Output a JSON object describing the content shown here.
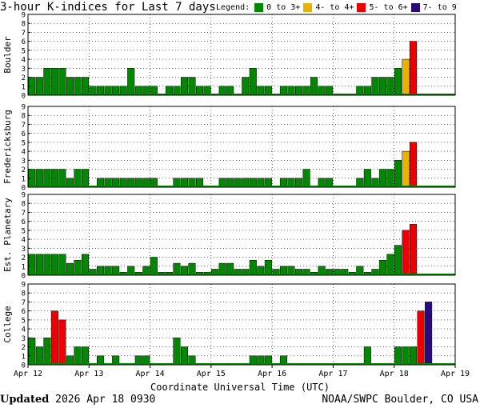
{
  "title": "3-hour K-indices for Last 7 days",
  "legend": {
    "label": "Legend:",
    "items": [
      {
        "label": "0 to 3+",
        "color": "#008800"
      },
      {
        "label": "4- to 4+",
        "color": "#e6b400"
      },
      {
        "label": "5- to 6+",
        "color": "#ee0000"
      },
      {
        "label": "7- to 9",
        "color": "#2a0a7a"
      }
    ]
  },
  "footer": {
    "updated_label": "Updated",
    "updated_value": "2026 Apr 18 0930",
    "credit": "NOAA/SWPC Boulder, CO USA"
  },
  "chart_data": {
    "type": "bar",
    "xlabel": "Coordinate Universal Time (UTC)",
    "x_ticks": [
      "Apr 12",
      "Apr 13",
      "Apr 14",
      "Apr 15",
      "Apr 16",
      "Apr 17",
      "Apr 18",
      "Apr 19"
    ],
    "ylim": [
      0,
      9
    ],
    "y_ticks": [
      "0",
      "1",
      "2",
      "3",
      "4",
      "5",
      "6",
      "7",
      "8",
      "9"
    ],
    "grid": true,
    "bins_per_day": 8,
    "panels": [
      {
        "name": "Boulder",
        "values": [
          2,
          2,
          3,
          3,
          3,
          2,
          2,
          2,
          1,
          1,
          1,
          1,
          1,
          3,
          1,
          1,
          1,
          0,
          1,
          1,
          2,
          2,
          1,
          1,
          0,
          1,
          1,
          0,
          2,
          3,
          1,
          1,
          0,
          1,
          1,
          1,
          1,
          2,
          1,
          1,
          0,
          0,
          0,
          1,
          1,
          2,
          2,
          2,
          3,
          4,
          6,
          0,
          0,
          0,
          0,
          0
        ]
      },
      {
        "name": "Fredericksburg",
        "values": [
          2,
          2,
          2,
          2,
          2,
          1,
          2,
          2,
          0,
          1,
          1,
          1,
          1,
          1,
          1,
          1,
          1,
          0,
          0,
          1,
          1,
          1,
          1,
          0,
          0,
          1,
          1,
          1,
          1,
          1,
          1,
          1,
          0,
          1,
          1,
          1,
          2,
          0,
          1,
          1,
          0,
          0,
          0,
          1,
          2,
          1,
          2,
          2,
          3,
          4,
          5,
          0,
          0,
          0,
          0,
          0
        ]
      },
      {
        "name": "Est. Planetary",
        "values": [
          2.33,
          2.33,
          2.33,
          2.33,
          2.33,
          1.33,
          1.67,
          2.33,
          0.67,
          1,
          1,
          1,
          0.33,
          1,
          0.33,
          1,
          2,
          0.33,
          0.33,
          1.33,
          1,
          1.33,
          0.33,
          0.33,
          0.67,
          1.33,
          1.33,
          0.67,
          0.67,
          1.67,
          1,
          1.67,
          0.67,
          1,
          1,
          0.67,
          0.67,
          0.33,
          1,
          0.67,
          0.67,
          0.67,
          0.33,
          1,
          0.33,
          0.67,
          1.67,
          2.33,
          3.33,
          5,
          5.67,
          0,
          0,
          0,
          0,
          0
        ]
      },
      {
        "name": "College",
        "values": [
          3,
          2,
          3,
          6,
          5,
          1,
          2,
          2,
          0,
          1,
          0,
          1,
          0,
          0,
          1,
          1,
          0,
          0,
          0,
          3,
          2,
          1,
          0,
          0,
          0,
          0,
          0,
          0,
          0,
          1,
          1,
          1,
          0,
          1,
          0,
          0,
          0,
          0,
          0,
          0,
          0,
          0,
          0,
          0,
          2,
          0,
          0,
          0,
          2,
          2,
          2,
          6,
          7,
          0,
          0,
          0
        ]
      }
    ]
  }
}
